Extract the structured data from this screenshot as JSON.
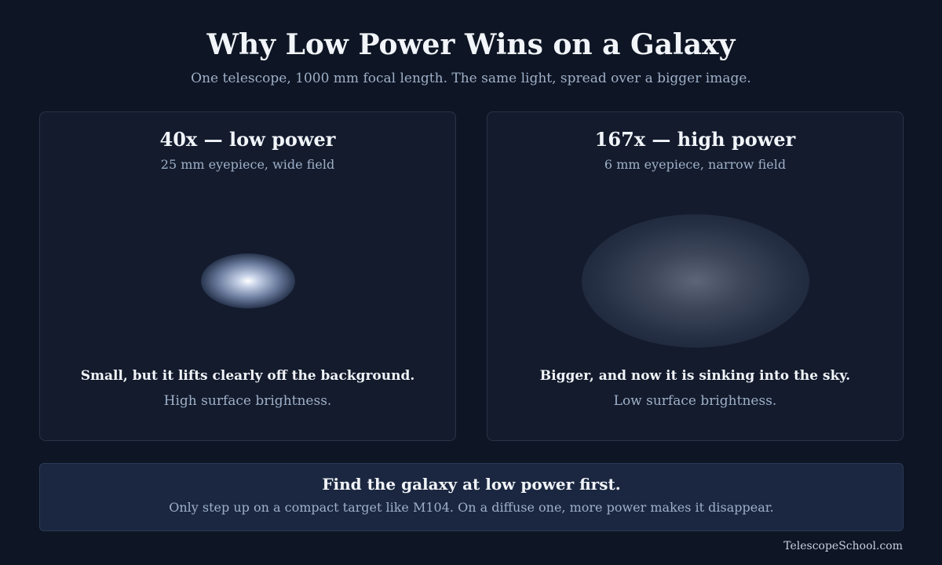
{
  "title": "Why Low Power Wins on a Galaxy",
  "subtitle": "One telescope, 1000 mm focal length. The same light, spread over a bigger image.",
  "panels": [
    {
      "heading": "40x — low power",
      "subheading": "25 mm eyepiece, wide field",
      "caption": "Small, but it lifts clearly off the background.",
      "note": "High surface brightness."
    },
    {
      "heading": "167x — high power",
      "subheading": "6 mm eyepiece, narrow field",
      "caption": "Bigger, and now it is sinking into the sky.",
      "note": "Low surface brightness."
    }
  ],
  "callout": {
    "title": "Find the galaxy at low power first.",
    "text": "Only step up on a compact target like M104. On a diffuse one, more power makes it disappear."
  },
  "footer": "TelescopeSchool.com"
}
